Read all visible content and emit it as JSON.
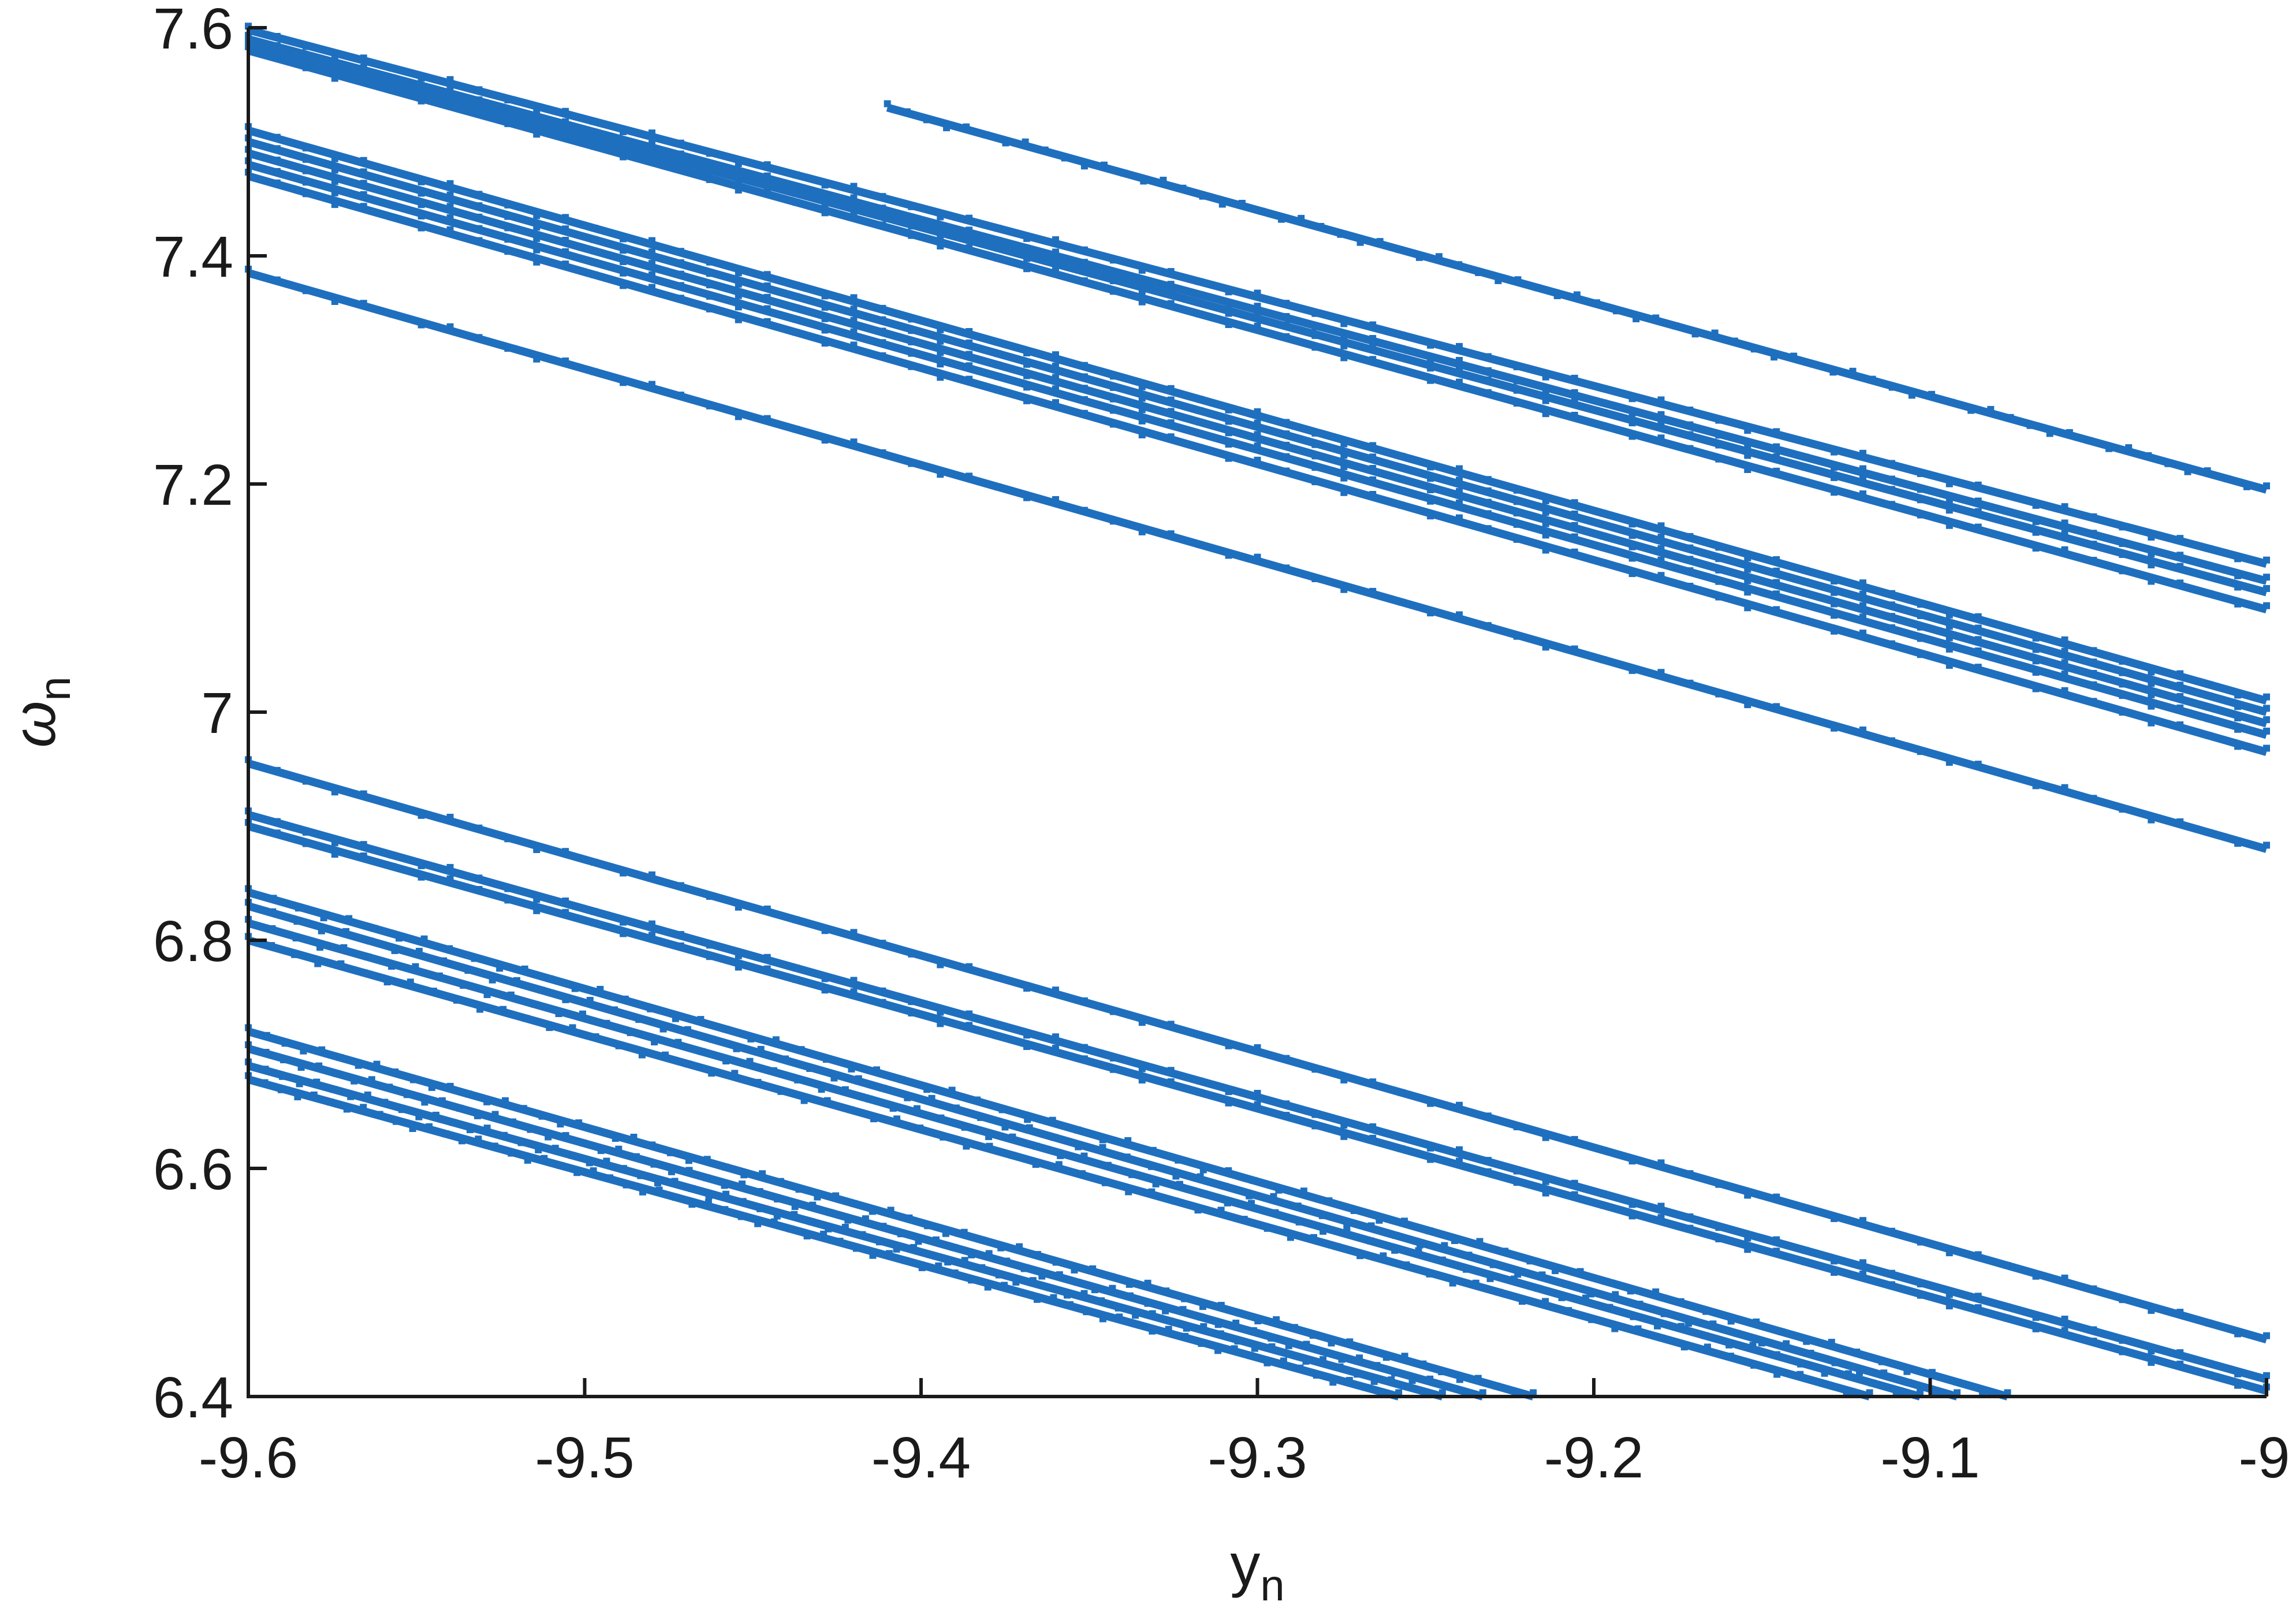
{
  "chart_data": {
    "type": "scatter",
    "xlabel": {
      "base": "y",
      "sub": "n"
    },
    "ylabel": {
      "base": "ω",
      "sub": "n"
    },
    "xlim": [
      -9.6,
      -9.0
    ],
    "ylim": [
      6.4,
      7.6
    ],
    "xticks": [
      -9.6,
      -9.5,
      -9.4,
      -9.3,
      -9.2,
      -9.1,
      -9.0
    ],
    "xtick_labels": [
      "-9.6",
      "-9.5",
      "-9.4",
      "-9.3",
      "-9.2",
      "-9.1",
      "-9"
    ],
    "yticks": [
      6.4,
      6.6,
      6.8,
      7.0,
      7.2,
      7.4,
      7.6
    ],
    "ytick_labels": [
      "6.4",
      "6.6",
      "6.8",
      "7",
      "7.2",
      "7.4",
      "7.6"
    ],
    "grid": false,
    "marker_color": "#1f6fbf",
    "series": [
      {
        "values": [
          [
            -9.6,
            7.598
          ],
          [
            -9.0,
            7.13
          ]
        ]
      },
      {
        "values": [
          [
            -9.6,
            7.59
          ],
          [
            -9.0,
            7.115
          ]
        ]
      },
      {
        "values": [
          [
            -9.6,
            7.585
          ],
          [
            -9.0,
            7.105
          ]
        ]
      },
      {
        "values": [
          [
            -9.6,
            7.58
          ],
          [
            -9.0,
            7.09
          ]
        ]
      },
      {
        "values": [
          [
            -9.41,
            7.53
          ],
          [
            -9.0,
            7.195
          ]
        ]
      },
      {
        "values": [
          [
            -9.6,
            7.51
          ],
          [
            -9.0,
            7.01
          ]
        ]
      },
      {
        "values": [
          [
            -9.6,
            7.5
          ],
          [
            -9.0,
            7.0
          ]
        ]
      },
      {
        "values": [
          [
            -9.6,
            7.49
          ],
          [
            -9.0,
            6.99
          ]
        ]
      },
      {
        "values": [
          [
            -9.6,
            7.48
          ],
          [
            -9.0,
            6.98
          ]
        ]
      },
      {
        "values": [
          [
            -9.6,
            7.47
          ],
          [
            -9.0,
            6.965
          ]
        ]
      },
      {
        "values": [
          [
            -9.6,
            7.385
          ],
          [
            -9.0,
            6.88
          ]
        ]
      },
      {
        "values": [
          [
            -9.6,
            6.955
          ],
          [
            -9.0,
            6.45
          ]
        ]
      },
      {
        "values": [
          [
            -9.6,
            6.91
          ],
          [
            -9.0,
            6.415
          ]
        ]
      },
      {
        "values": [
          [
            -9.6,
            6.9
          ],
          [
            -9.0,
            6.405
          ]
        ]
      },
      {
        "values": [
          [
            -9.6,
            6.842
          ],
          [
            -9.077,
            6.4
          ]
        ]
      },
      {
        "values": [
          [
            -9.6,
            6.83
          ],
          [
            -9.092,
            6.4
          ]
        ]
      },
      {
        "values": [
          [
            -9.6,
            6.815
          ],
          [
            -9.103,
            6.4
          ]
        ]
      },
      {
        "values": [
          [
            -9.6,
            6.8
          ],
          [
            -9.118,
            6.4
          ]
        ]
      },
      {
        "values": [
          [
            -9.6,
            6.72
          ],
          [
            -9.218,
            6.4
          ]
        ]
      },
      {
        "values": [
          [
            -9.6,
            6.705
          ],
          [
            -9.233,
            6.4
          ]
        ]
      },
      {
        "values": [
          [
            -9.6,
            6.69
          ],
          [
            -9.245,
            6.4
          ]
        ]
      },
      {
        "values": [
          [
            -9.6,
            6.678
          ],
          [
            -9.258,
            6.4
          ]
        ]
      }
    ]
  }
}
